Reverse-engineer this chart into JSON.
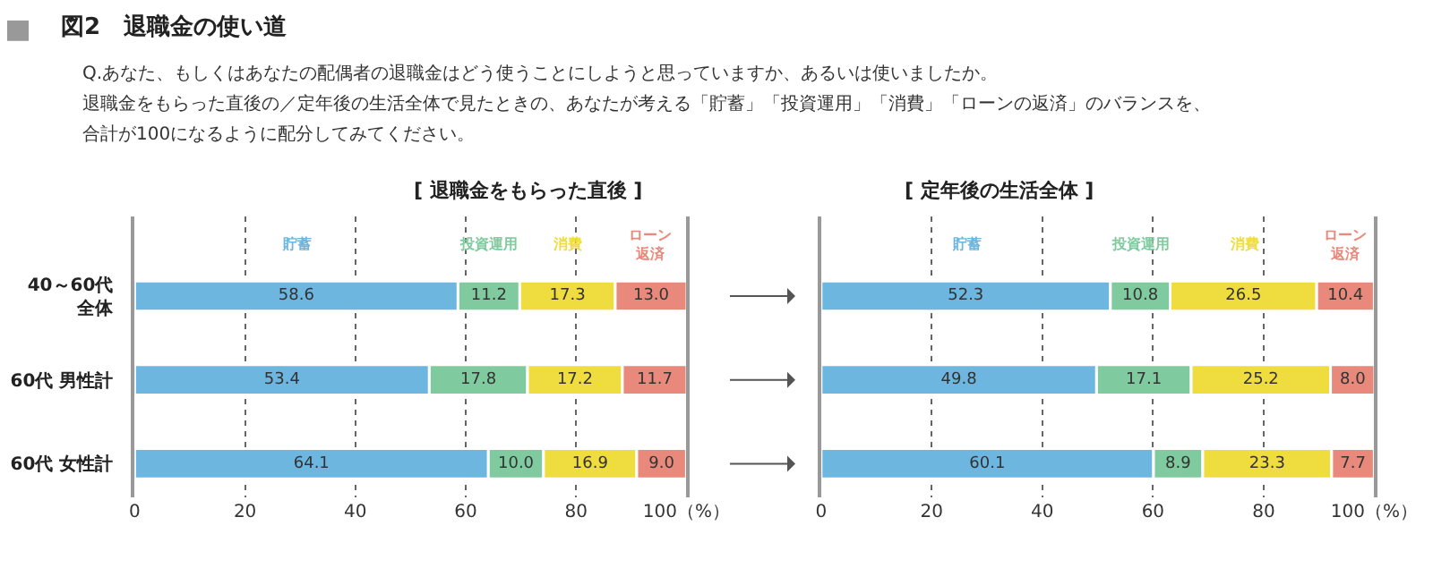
{
  "chart_data": [
    {
      "type": "bar",
      "orientation": "horizontal",
      "stacked": true,
      "title": "[ 退職金をもらった直後 ]",
      "annotations": [
        "図2　退職金の使い道",
        "Q.あなた、もしくはあなたの配偶者の退職金はどう使うことにしようと思っていますか、あるいは使いましたか。",
        "退職金をもらった直後の／定年後の生活全体で見たときの、あなたが考える「貯蓄」「投資運用」「消費」「ローンの返済」のバランスを、",
        "合計が100になるように配分してみてください。"
      ],
      "categories": [
        "40～60代全体",
        "60代 男性計",
        "60代 女性計"
      ],
      "series": [
        {
          "name": "貯蓄",
          "color": "#6cb6e0",
          "values": [
            58.6,
            53.4,
            64.1
          ],
          "value_labels": [
            "58.6",
            "53.4",
            "64.1"
          ]
        },
        {
          "name": "投資運用",
          "color": "#7fcb9f",
          "values": [
            11.2,
            17.8,
            10.0
          ],
          "value_labels": [
            "11.2",
            "17.8",
            "10.0"
          ]
        },
        {
          "name": "消費",
          "color": "#efdc3e",
          "values": [
            17.3,
            17.2,
            16.9
          ],
          "value_labels": [
            "17.3",
            "17.2",
            "16.9"
          ]
        },
        {
          "name": "ローン返済",
          "color": "#e8897b",
          "values": [
            13.0,
            11.7,
            9.0
          ],
          "value_labels": [
            "13.0",
            "11.7",
            "9.0"
          ]
        }
      ],
      "xlim": [
        0,
        100
      ],
      "xticks": [
        0,
        20,
        40,
        60,
        80,
        {
          "value": 100,
          "label": "100（%）"
        }
      ],
      "grid": "x"
    },
    {
      "type": "bar",
      "orientation": "horizontal",
      "stacked": true,
      "title": "[ 定年後の生活全体 ]",
      "categories": [
        "40～60代全体",
        "60代 男性計",
        "60代 女性計"
      ],
      "series": [
        {
          "name": "貯蓄",
          "color": "#6cb6e0",
          "values": [
            52.3,
            49.8,
            60.1
          ],
          "value_labels": [
            "52.3",
            "49.8",
            "60.1"
          ]
        },
        {
          "name": "投資運用",
          "color": "#7fcb9f",
          "values": [
            10.8,
            17.1,
            8.9
          ],
          "value_labels": [
            "10.8",
            "17.1",
            "8.9"
          ]
        },
        {
          "name": "消費",
          "color": "#efdc3e",
          "values": [
            26.5,
            25.2,
            23.3
          ],
          "value_labels": [
            "26.5",
            "25.2",
            "23.3"
          ]
        },
        {
          "name": "ローン返済",
          "color": "#e8897b",
          "values": [
            10.4,
            8.0,
            7.7
          ],
          "value_labels": [
            "10.4",
            "8.0",
            "7.7"
          ]
        }
      ],
      "xlim": [
        0,
        100
      ],
      "xticks": [
        0,
        20,
        40,
        60,
        80,
        {
          "value": 100,
          "label": "100（%）"
        }
      ],
      "grid": "x",
      "tick_labels": "x"
    }
  ]
}
